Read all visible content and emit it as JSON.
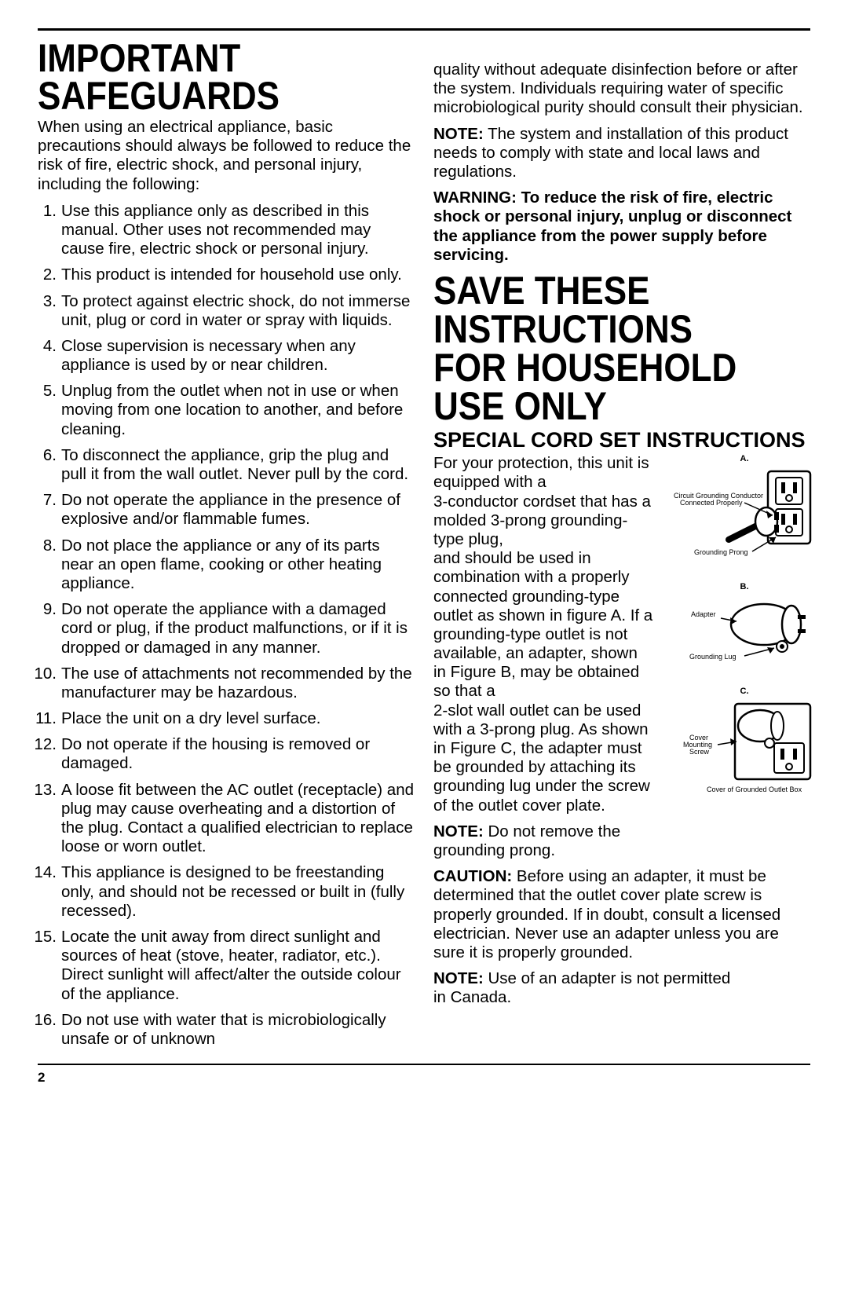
{
  "page_number": "2",
  "col1": {
    "title": "IMPORTANT SAFEGUARDS",
    "intro": "When using an electrical appliance, basic precautions should always be followed to reduce the risk of fire, electric shock, and personal injury, including the following:",
    "items": [
      "Use this appliance only as described in this manual. Other uses not recommended may cause fire, electric shock or personal injury.",
      "This product is intended for household use only.",
      "To protect against electric shock, do not immerse unit, plug or cord in water or spray with liquids.",
      "Close supervision is necessary when any appliance is used by or near children.",
      "Unplug from the outlet when not in use or when moving from one location to another, and before cleaning.",
      "To disconnect the appliance, grip the plug and pull it from the wall outlet.  Never pull by the cord.",
      "Do not operate the appliance in the presence of explosive and/or flammable fumes.",
      "Do not place the appliance or any of its parts near an open flame, cooking or other heating appliance.",
      "Do not operate the appliance with a damaged cord or plug, if the product malfunctions, or if it is dropped or damaged in any manner.",
      "The use of attachments not recommended by the manufacturer may be hazardous.",
      "Place the unit on a dry level surface.",
      "Do not operate if the housing is removed or damaged.",
      "A loose fit between the AC outlet (receptacle) and plug may cause overheating and a distortion of the plug. Contact a qualified electrician to replace loose or worn outlet.",
      "This appliance is designed to be freestanding only, and should not be recessed or built in (fully recessed).",
      "Locate the unit away from direct sunlight and sources of heat (stove, heater, radiator, etc.). Direct sunlight will affect/alter the outside colour of the appliance.",
      "Do not use with water that is microbiologically unsafe or of unknown"
    ]
  },
  "col2": {
    "continuation": "quality without adequate disinfection before or after the system. Individuals requiring water of specific microbiological purity should consult their physician.",
    "note1_label": "NOTE:",
    "note1": " The system and installation of this product needs to comply with state and local laws and regulations.",
    "warning_label": "WARNING: To reduce the risk of fire, electric shock or personal injury, unplug or disconnect the appliance from the power supply before servicing.",
    "save_title": "SAVE THESE INSTRUCTIONS FOR HOUSEHOLD USE ONLY",
    "cord_title": "SPECIAL CORD SET INSTRUCTIONS",
    "cord_text": "For your protection, this unit is equipped with a \n3-conductor cordset that has a molded 3-prong grounding-type plug, \nand should be used in combination with a properly connected grounding-type outlet as shown in figure A. If a grounding-type outlet is not available, an adapter, shown  in Figure B, may be obtained so that a \n2-slot wall outlet can be used with a 3-prong plug. As shown in Figure C, the adapter must be grounded by attaching its grounding lug under the screw of the outlet cover plate.",
    "note2_label": "NOTE:",
    "note2": " Do not remove the grounding prong.",
    "caution_label": "CAUTION:",
    "caution": " Before using an adapter, it must be determined that the outlet cover plate screw is properly grounded. If in doubt, consult a licensed electrician. Never use an adapter unless you are sure it is properly grounded.",
    "note3_label": "NOTE:",
    "note3_line1": " Use of an adapter is not permitted",
    "note3_line2": "in Canada.",
    "figA": {
      "label": "A.",
      "cap1": "Circuit Grounding Conductor",
      "cap2": "Connected Properly",
      "cap3": "Grounding Prong"
    },
    "figB": {
      "label": "B.",
      "cap1": "Adapter",
      "cap2": "Grounding Lug"
    },
    "figC": {
      "label": "C.",
      "cap1": "Cover",
      "cap2": "Mounting",
      "cap3": "Screw",
      "cap4": "Cover of Grounded Outlet Box"
    }
  }
}
